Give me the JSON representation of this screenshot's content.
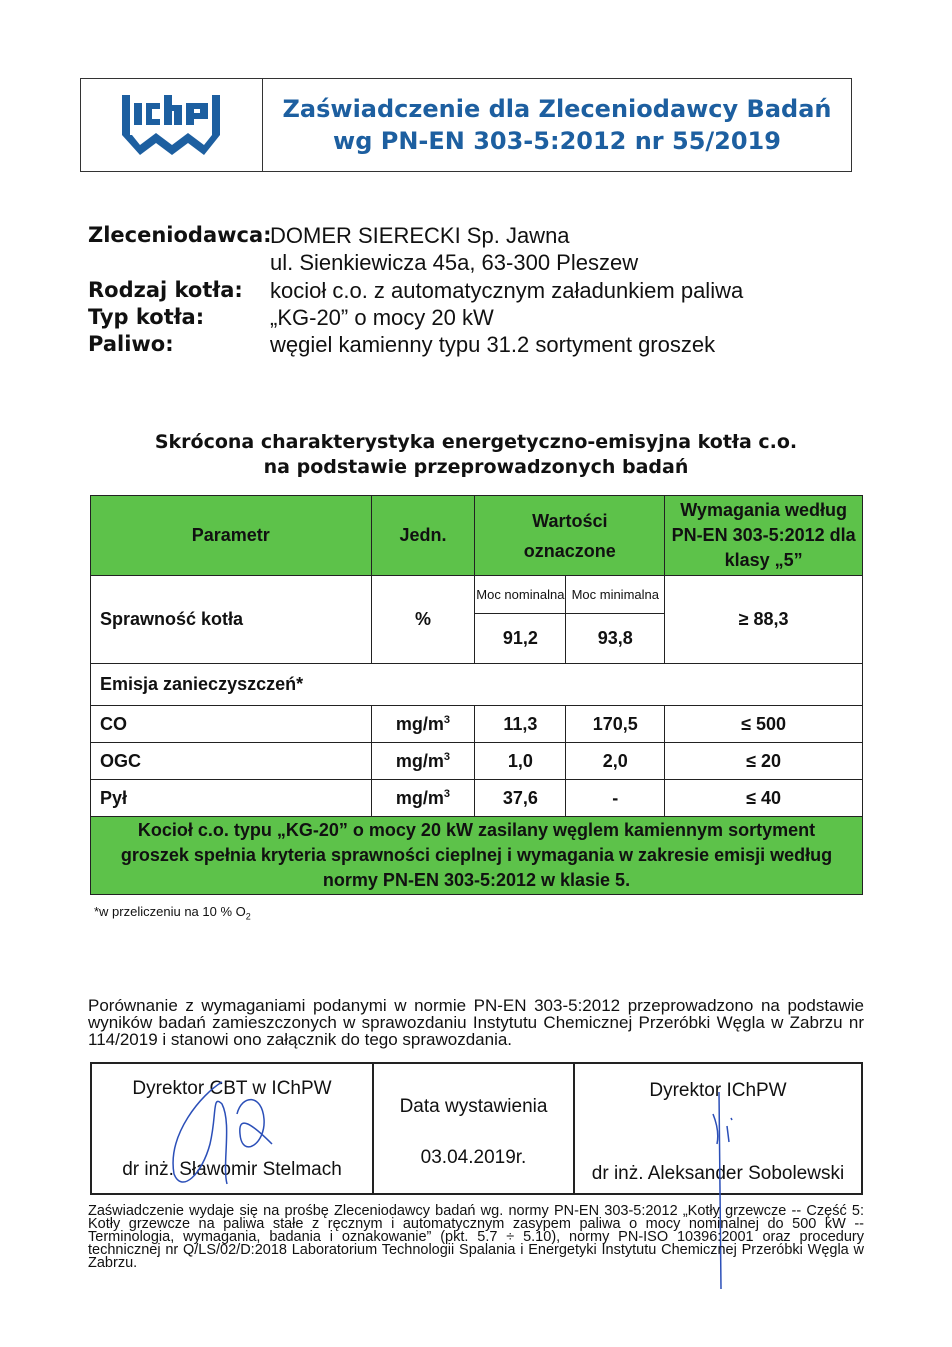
{
  "header": {
    "logo_text": "IChPW",
    "title_line1": "Zaświadczenie dla Zleceniodawcy Badań",
    "title_line2": "wg PN-EN 303-5:2012 nr 55/2019"
  },
  "info": [
    {
      "label": "Zleceniodawca:",
      "values": [
        "DOMER SIERECKI Sp. Jawna",
        "ul. Sienkiewicza 45a, 63-300 Pleszew"
      ]
    },
    {
      "label": "Rodzaj kotła:",
      "values": [
        "kocioł c.o. z automatycznym załadunkiem paliwa"
      ]
    },
    {
      "label": "Typ kotła:",
      "values": [
        "„KG-20” o mocy 20 kW"
      ]
    },
    {
      "label": "Paliwo:",
      "values": [
        "węgiel kamienny typu 31.2 sortyment groszek"
      ]
    }
  ],
  "subtitle": {
    "line1": "Skrócona charakterystyka energetyczno-emisyjna kotła c.o.",
    "line2": "na podstawie przeprowadzonych badań"
  },
  "table": {
    "headers": {
      "param": "Parametr",
      "unit": "Jedn.",
      "values": "Wartości oznaczone",
      "req": "Wymagania według PN-EN 303-5:2012 dla klasy „5”"
    },
    "efficiency": {
      "label": "Sprawność kotła",
      "unit": "%",
      "sub_nominal": "Moc nominalna",
      "sub_minimal": "Moc minimalna",
      "nominal": "91,2",
      "minimal": "93,8",
      "req": "≥ 88,3"
    },
    "emission_header": "Emisja zanieczyszczeń*",
    "rows": [
      {
        "param": "CO",
        "unit": "mg/m",
        "sup": "3",
        "nominal": "11,3",
        "minimal": "170,5",
        "req": "≤ 500"
      },
      {
        "param": "OGC",
        "unit": "mg/m",
        "sup": "3",
        "nominal": "1,0",
        "minimal": "2,0",
        "req": "≤ 20"
      },
      {
        "param": "Pył",
        "unit": "mg/m",
        "sup": "3",
        "nominal": "37,6",
        "minimal": "-",
        "req": "≤ 40"
      }
    ],
    "conclusion": "Kocioł c.o. typu „KG-20” o mocy 20 kW zasilany węglem kamiennym sortyment groszek spełnia kryteria sprawności cieplnej i wymagania w zakresie emisji według normy PN-EN 303-5:2012 w klasie 5."
  },
  "footnote": {
    "text": "*w przeliczeniu na 10 % O",
    "sub": "2"
  },
  "comparison": "Porównanie z wymaganiami podanymi w normie PN-EN 303-5:2012 przeprowadzono na podstawie wyników badań zamieszczonych w sprawozdaniu Instytutu Chemicznej Przeróbki Węgla w Zabrzu nr 114/2019 i stanowi ono załącznik do tego sprawozdania.",
  "signatures": {
    "left_title": "Dyrektor CBT w IChPW",
    "left_name": "dr inż. Sławomir Stelmach",
    "date_label": "Data wystawienia",
    "date": "03.04.2019r.",
    "right_title": "Dyrektor IChPW",
    "right_name": "dr inż. Aleksander Sobolewski"
  },
  "footer": "Zaświadczenie wydaje się na prośbę Zleceniodawcy badań wg. normy PN-EN 303-5:2012 „Kotły grzewcze -- Część 5: Kotły grzewcze na paliwa stałe z ręcznym i automatycznym zasypem paliwa o mocy nominalnej do 500 kW -- Terminologia, wymagania, badania i oznakowanie” (pkt. 5.7 ÷ 5.10), normy PN-ISO 10396:2001 oraz procedury technicznej nr Q/LS/02/D:2018 Laboratorium Technologii Spalania i Energetyki Instytutu Chemicznej Przeróbki Węgla w Zabrzu.",
  "colors": {
    "brand": "#1d5fa0",
    "table_green": "#5dc24a",
    "signature_ink": "#2b4fb8"
  }
}
